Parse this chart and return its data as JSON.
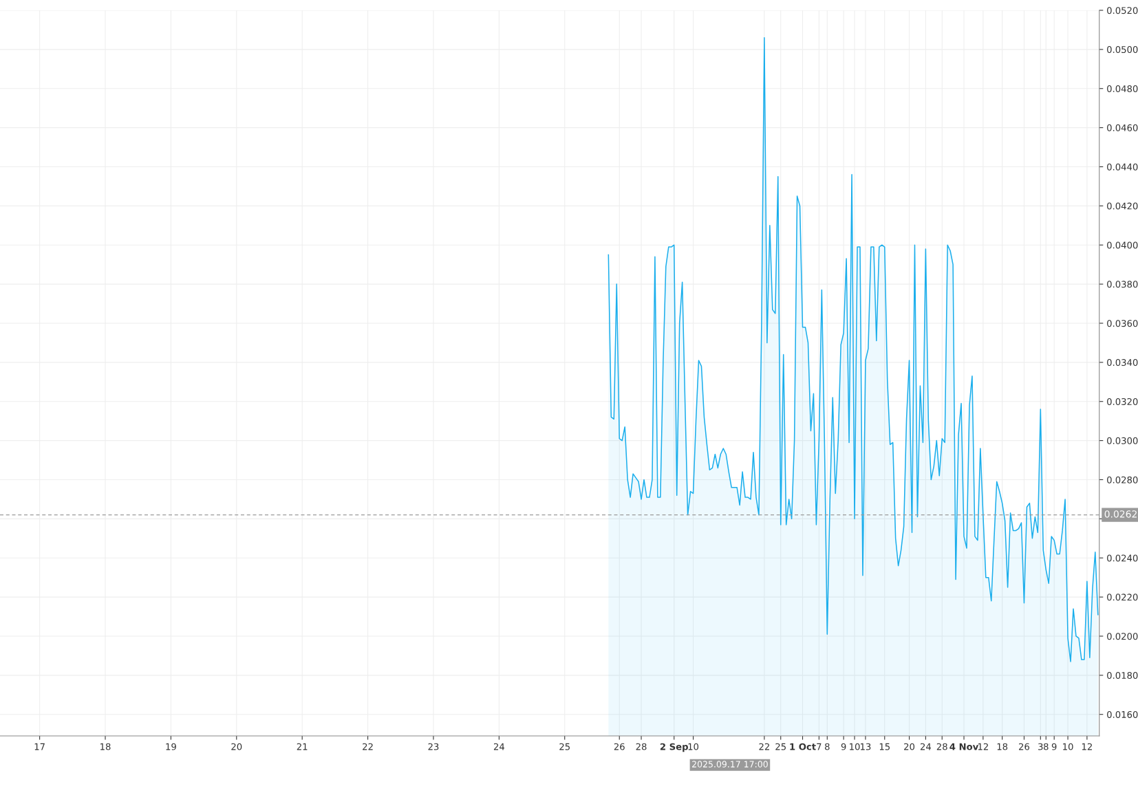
{
  "chart_data": {
    "type": "area",
    "categories": [
      null,
      null,
      null,
      null,
      null,
      null,
      null,
      null,
      null,
      null,
      null,
      null,
      null,
      null,
      "17",
      null,
      null,
      null,
      null,
      null,
      null,
      null,
      null,
      null,
      null,
      null,
      null,
      null,
      null,
      null,
      null,
      null,
      null,
      null,
      null,
      null,
      null,
      null,
      "18",
      null,
      null,
      null,
      null,
      null,
      null,
      null,
      null,
      null,
      null,
      null,
      null,
      null,
      null,
      null,
      null,
      null,
      null,
      null,
      null,
      null,
      null,
      null,
      "19",
      null,
      null,
      null,
      null,
      null,
      null,
      null,
      null,
      null,
      null,
      null,
      null,
      null,
      null,
      null,
      null,
      null,
      null,
      null,
      null,
      null,
      null,
      null,
      "20",
      null,
      null,
      null,
      null,
      null,
      null,
      null,
      null,
      null,
      null,
      null,
      null,
      null,
      null,
      null,
      null,
      null,
      null,
      null,
      null,
      null,
      null,
      null,
      "21",
      null,
      null,
      null,
      null,
      null,
      null,
      null,
      null,
      null,
      null,
      null,
      null,
      null,
      null,
      null,
      null,
      null,
      null,
      null,
      null,
      null,
      null,
      null,
      "22",
      null,
      null,
      null,
      null,
      null,
      null,
      null,
      null,
      null,
      null,
      null,
      null,
      null,
      null,
      null,
      null,
      null,
      null,
      null,
      null,
      null,
      null,
      null,
      "23",
      null,
      null,
      null,
      null,
      null,
      null,
      null,
      null,
      null,
      null,
      null,
      null,
      null,
      null,
      null,
      null,
      null,
      null,
      null,
      null,
      null,
      null,
      null,
      "24",
      null,
      null,
      null,
      null,
      null,
      null,
      null,
      null,
      null,
      null,
      null,
      null,
      null,
      null,
      null,
      null,
      null,
      null,
      null,
      null,
      null,
      null,
      null,
      "25",
      null,
      null,
      null,
      null,
      null,
      null,
      null,
      null,
      null,
      null,
      null,
      null,
      null,
      null,
      null,
      null,
      null,
      null,
      null,
      "26",
      null,
      null,
      null,
      null,
      null,
      null,
      null,
      "28",
      null,
      null,
      null,
      null,
      null,
      null,
      null,
      null,
      null,
      null,
      null,
      "2 Sep",
      null,
      null,
      null,
      null,
      null,
      null,
      "10",
      null,
      null,
      null,
      null,
      null,
      null,
      null,
      null,
      null,
      null,
      null,
      null,
      null,
      null,
      null,
      null,
      null,
      null,
      null,
      null,
      null,
      null,
      null,
      null,
      null,
      "22",
      null,
      null,
      null,
      null,
      null,
      "25",
      null,
      null,
      null,
      null,
      null,
      null,
      null,
      "1 Oct",
      null,
      null,
      null,
      null,
      null,
      "7",
      null,
      null,
      "8",
      null,
      null,
      null,
      null,
      null,
      "9",
      null,
      null,
      null,
      "10",
      null,
      null,
      null,
      "13",
      null,
      null,
      null,
      null,
      null,
      null,
      "15",
      null,
      null,
      null,
      null,
      null,
      null,
      null,
      null,
      "20",
      null,
      null,
      null,
      null,
      null,
      "24",
      null,
      null,
      null,
      null,
      null,
      "28",
      null,
      null,
      null,
      null,
      null,
      null,
      null,
      "4 Nov",
      null,
      null,
      null,
      null,
      null,
      null,
      "12",
      null,
      null,
      null,
      null,
      null,
      null,
      "18",
      null,
      null,
      null,
      null,
      null,
      null,
      null,
      "26",
      null,
      null,
      null,
      null,
      null,
      "3",
      null,
      "8",
      null,
      null,
      "9",
      null,
      null,
      null,
      null,
      "10",
      null,
      null,
      null,
      null,
      null,
      null,
      "12",
      null,
      null,
      null,
      null
    ],
    "series": [
      {
        "color": "#1aaeec",
        "values": [
          null,
          null,
          null,
          null,
          null,
          null,
          null,
          null,
          null,
          null,
          null,
          null,
          null,
          null,
          null,
          null,
          null,
          null,
          null,
          null,
          null,
          null,
          null,
          null,
          null,
          null,
          null,
          null,
          null,
          null,
          null,
          null,
          null,
          null,
          null,
          null,
          null,
          null,
          null,
          null,
          null,
          null,
          null,
          null,
          null,
          null,
          null,
          null,
          null,
          null,
          null,
          null,
          null,
          null,
          null,
          null,
          null,
          null,
          null,
          null,
          null,
          null,
          null,
          null,
          null,
          null,
          null,
          null,
          null,
          null,
          null,
          null,
          null,
          null,
          null,
          null,
          null,
          null,
          null,
          null,
          null,
          null,
          null,
          null,
          null,
          null,
          null,
          null,
          null,
          null,
          null,
          null,
          null,
          null,
          null,
          null,
          null,
          null,
          null,
          null,
          null,
          null,
          null,
          null,
          null,
          null,
          null,
          null,
          null,
          null,
          null,
          null,
          null,
          null,
          null,
          null,
          null,
          null,
          null,
          null,
          null,
          null,
          null,
          null,
          null,
          null,
          null,
          null,
          null,
          null,
          null,
          null,
          null,
          null,
          null,
          null,
          null,
          null,
          null,
          null,
          null,
          null,
          null,
          null,
          null,
          null,
          null,
          null,
          null,
          null,
          null,
          null,
          null,
          null,
          null,
          null,
          null,
          null,
          null,
          null,
          null,
          null,
          null,
          null,
          null,
          null,
          null,
          null,
          null,
          null,
          null,
          null,
          null,
          null,
          null,
          null,
          null,
          null,
          null,
          null,
          null,
          null,
          null,
          null,
          null,
          null,
          null,
          null,
          null,
          null,
          null,
          null,
          null,
          null,
          null,
          null,
          null,
          null,
          null,
          null,
          null,
          null,
          null,
          null,
          null,
          null,
          null,
          null,
          null,
          null,
          null,
          null,
          null,
          null,
          null,
          null,
          null,
          null,
          null,
          null,
          null,
          null,
          0.0395,
          0.0312,
          0.0311,
          0.038,
          0.0301,
          0.03,
          0.0307,
          0.028,
          0.0271,
          0.0283,
          0.0281,
          0.0279,
          0.027,
          0.028,
          0.0271,
          0.0271,
          0.028,
          0.0394,
          0.0271,
          0.0271,
          0.034,
          0.0389,
          0.0399,
          0.0399,
          0.04,
          0.0272,
          0.036,
          0.0381,
          0.032,
          0.0262,
          0.0274,
          0.0273,
          0.031,
          0.0341,
          0.0338,
          0.0312,
          0.0298,
          0.0285,
          0.0286,
          0.0293,
          0.0286,
          0.0293,
          0.0296,
          0.0293,
          0.0284,
          0.0276,
          0.0276,
          0.0276,
          0.0267,
          0.0284,
          0.0271,
          0.0271,
          0.027,
          0.0294,
          0.0271,
          0.0262,
          0.036,
          0.0506,
          0.035,
          0.041,
          0.0367,
          0.0365,
          0.0435,
          0.0257,
          0.0344,
          0.0257,
          0.027,
          0.026,
          0.03,
          0.0425,
          0.042,
          0.0358,
          0.0358,
          0.035,
          0.0305,
          0.0324,
          0.0257,
          0.03,
          0.0377,
          0.03,
          0.0201,
          0.027,
          0.0322,
          0.0273,
          0.03,
          0.0349,
          0.0355,
          0.0393,
          0.0299,
          0.0436,
          0.026,
          0.0399,
          0.0399,
          0.0231,
          0.0341,
          0.0347,
          0.0399,
          0.0399,
          0.0351,
          0.0399,
          0.04,
          0.0399,
          0.0331,
          0.0298,
          0.0299,
          0.025,
          0.0236,
          0.0244,
          0.0256,
          0.0311,
          0.0341,
          0.0253,
          0.04,
          0.0261,
          0.0328,
          0.0299,
          0.0398,
          0.031,
          0.028,
          0.0287,
          0.03,
          0.0282,
          0.0301,
          0.0299,
          0.04,
          0.0397,
          0.039,
          0.0229,
          0.0303,
          0.0319,
          0.0251,
          0.0245,
          0.0318,
          0.0333,
          0.0251,
          0.0249,
          0.0296,
          0.0262,
          0.023,
          0.023,
          0.0218,
          0.0249,
          0.0279,
          0.0274,
          0.0268,
          0.0259,
          0.0225,
          0.0263,
          0.0254,
          0.0254,
          0.0255,
          0.0258,
          0.0217,
          0.0266,
          0.0268,
          0.025,
          0.0261,
          0.0253,
          0.0316,
          0.0244,
          0.0234,
          0.0227,
          0.0251,
          0.0249,
          0.0242,
          0.0242,
          0.0254,
          0.027,
          0.0199,
          0.0187,
          0.0214,
          0.02,
          0.0199,
          0.0188,
          0.0188,
          0.0228,
          0.0189,
          0.0224,
          0.0243,
          0.0211
        ]
      }
    ],
    "ylim": [
      0.0149,
      0.052
    ],
    "yticks": [
      {
        "value": 0.016,
        "label": "0.0160"
      },
      {
        "value": 0.018,
        "label": "0.0180"
      },
      {
        "value": 0.02,
        "label": "0.0200"
      },
      {
        "value": 0.022,
        "label": "0.0220"
      },
      {
        "value": 0.024,
        "label": "0.0240"
      },
      {
        "value": 0.026,
        "label": null
      },
      {
        "value": 0.028,
        "label": "0.0280"
      },
      {
        "value": 0.03,
        "label": "0.0300"
      },
      {
        "value": 0.032,
        "label": "0.0320"
      },
      {
        "value": 0.034,
        "label": "0.0340"
      },
      {
        "value": 0.036,
        "label": "0.0360"
      },
      {
        "value": 0.038,
        "label": "0.0380"
      },
      {
        "value": 0.04,
        "label": "0.0400"
      },
      {
        "value": 0.042,
        "label": "0.0420"
      },
      {
        "value": 0.044,
        "label": "0.0440"
      },
      {
        "value": 0.046,
        "label": "0.0460"
      },
      {
        "value": 0.048,
        "label": "0.0480"
      },
      {
        "value": 0.05,
        "label": "0.0500"
      },
      {
        "value": 0.052,
        "label": "0.0520"
      }
    ],
    "grid": true,
    "ref_lines": [
      {
        "axis": "y",
        "value": 0.0262,
        "label": "0.0262",
        "color": "#9a9a9a",
        "line_style": "dashed"
      }
    ],
    "annotations": [
      "2025.09.17 17:00"
    ]
  }
}
